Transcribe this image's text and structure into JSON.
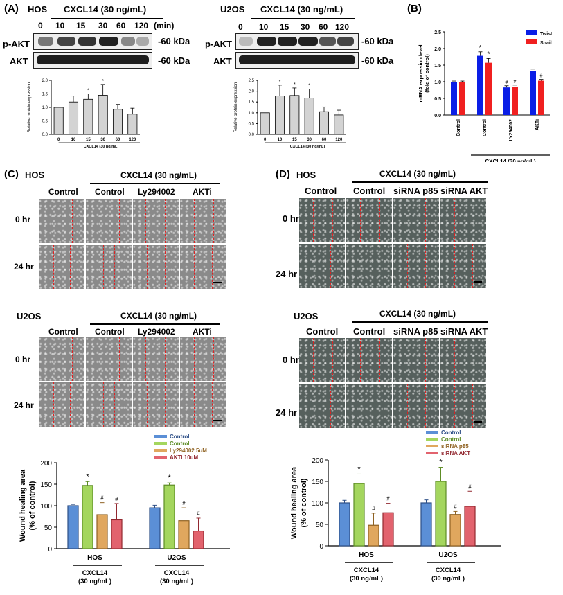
{
  "panelA": {
    "label": "(A)",
    "hos": {
      "cell": "HOS",
      "treatment": "CXCL14 (30 ng/mL)",
      "lanes": [
        "0",
        "10",
        "15",
        "30",
        "60",
        "120"
      ],
      "unit": "(min)",
      "rows": [
        "p-AKT",
        "AKT"
      ],
      "kda": "-60 kDa"
    },
    "u2os": {
      "cell": "U2OS",
      "treatment": "CXCL14 (30 ng/mL)",
      "lanes": [
        "0",
        "10",
        "15",
        "30",
        "60",
        "120"
      ],
      "rows": [
        "p-AKT",
        "AKT"
      ],
      "kda": "-60 kDa"
    }
  },
  "panelB": {
    "label": "(B)",
    "group": "CXCL14 (30 ng/mL)"
  },
  "panelC": {
    "label": "(C)",
    "hos": {
      "cell": "HOS",
      "treatment": "CXCL14 (30 ng/mL)",
      "cols": [
        "Control",
        "Control",
        "Ly294002",
        "AKTi"
      ],
      "rows": [
        "0 hr",
        "24 hr"
      ]
    },
    "u2os": {
      "cell": "U2OS",
      "treatment": "CXCL14 (30 ng/mL)",
      "cols": [
        "Control",
        "Control",
        "Ly294002",
        "AKTi"
      ],
      "rows": [
        "0 hr",
        "24 hr"
      ]
    }
  },
  "panelD": {
    "label": "(D)",
    "hos": {
      "cell": "HOS",
      "treatment": "CXCL14 (30 ng/mL)",
      "cols": [
        "Control",
        "Control",
        "siRNA p85",
        "siRNA AKT"
      ],
      "rows": [
        "0 hr",
        "24 hr"
      ]
    },
    "u2os": {
      "cell": "U2OS",
      "treatment": "CXCL14 (30 ng/mL)",
      "cols": [
        "Control",
        "Control",
        "siRNA p85",
        "siRNA AKT"
      ],
      "rows": [
        "0 hr",
        "24 hr"
      ]
    }
  },
  "colors": {
    "blue": "#5b8fd6",
    "green": "#a4d65e",
    "orange": "#e0a75e",
    "red": "#e2636e",
    "twist": "#0a1ee6",
    "snail": "#f02020",
    "bar_gray": "#d3d3d3"
  },
  "chart_data": [
    {
      "id": "A-HOS",
      "type": "bar",
      "categories": [
        "0",
        "10",
        "15",
        "30",
        "60",
        "120"
      ],
      "values": [
        1.0,
        1.2,
        1.3,
        1.45,
        0.93,
        0.75
      ],
      "errors": [
        0,
        0.22,
        0.2,
        0.4,
        0.18,
        0.22
      ],
      "marks": [
        "",
        "",
        "*",
        "*",
        "",
        ""
      ],
      "ylabel": "Relative protein expression",
      "xlabel": "CXCL14 (30 ng/mL)",
      "ylim": [
        0,
        2.0
      ],
      "yticks": [
        "0.0",
        "0.5",
        "1.0",
        "1.5",
        "2.0"
      ]
    },
    {
      "id": "A-U2OS",
      "type": "bar",
      "categories": [
        "0",
        "10",
        "15",
        "30",
        "60",
        "120"
      ],
      "values": [
        1.0,
        1.78,
        1.8,
        1.68,
        1.05,
        0.9
      ],
      "errors": [
        0,
        0.5,
        0.35,
        0.42,
        0.22,
        0.22
      ],
      "marks": [
        "",
        "*",
        "*",
        "*",
        "",
        ""
      ],
      "ylabel": "Relative protein expression",
      "xlabel": "CXCL14 (30 ng/mL)",
      "ylim": [
        0,
        2.5
      ],
      "yticks": [
        "0.0",
        "0.5",
        "1.0",
        "1.5",
        "2.0",
        "2.5"
      ]
    },
    {
      "id": "B",
      "type": "bar",
      "categories": [
        "Control",
        "Control",
        "LY294002",
        "AKTi"
      ],
      "series": [
        {
          "name": "Twist",
          "values": [
            1.0,
            1.78,
            0.83,
            1.33
          ],
          "errors": [
            0.02,
            0.12,
            0.05,
            0.05
          ],
          "marks": [
            "",
            "*",
            "#",
            ""
          ]
        },
        {
          "name": "Snail",
          "values": [
            1.0,
            1.57,
            0.84,
            1.03
          ],
          "errors": [
            0.02,
            0.13,
            0.06,
            0.04
          ],
          "marks": [
            "",
            "*",
            "#",
            "#"
          ]
        }
      ],
      "ylabel": "mRNA expression level (fold of control)",
      "ylabel_lines": [
        "mRNA expression level",
        "(fold of control)"
      ],
      "ylim": [
        0,
        2.5
      ],
      "yticks": [
        "0.0",
        "0.5",
        "1.0",
        "1.5",
        "2.0",
        "2.5"
      ],
      "legend": "top-right"
    },
    {
      "id": "C",
      "type": "bar",
      "categories": [
        "HOS",
        "U2OS"
      ],
      "category_sub": [
        "CXCL14",
        "(30 ng/mL)"
      ],
      "series": [
        {
          "name": "Control",
          "values": [
            100,
            95
          ],
          "errors": [
            3,
            6
          ],
          "marks": [
            "",
            ""
          ]
        },
        {
          "name": "Control",
          "values": [
            147,
            148
          ],
          "errors": [
            9,
            5
          ],
          "marks": [
            "*",
            "*"
          ]
        },
        {
          "name": "Ly294002 5uM",
          "values": [
            79,
            65
          ],
          "errors": [
            28,
            30
          ],
          "marks": [
            "#",
            "#"
          ]
        },
        {
          "name": "AKTi 10uM",
          "values": [
            67,
            41
          ],
          "errors": [
            38,
            30
          ],
          "marks": [
            "#",
            "#"
          ]
        }
      ],
      "ylabel": "Wound healing area",
      "ylabel2": "(% of control)",
      "ylim": [
        0,
        200
      ],
      "yticks": [
        "0",
        "50",
        "100",
        "150",
        "200"
      ],
      "legend": "top-right"
    },
    {
      "id": "D",
      "type": "bar",
      "categories": [
        "HOS",
        "U2OS"
      ],
      "category_sub": [
        "CXCL14",
        "(30 ng/mL)"
      ],
      "series": [
        {
          "name": "Control",
          "values": [
            100,
            100
          ],
          "errors": [
            6,
            7
          ],
          "marks": [
            "",
            ""
          ]
        },
        {
          "name": "Control",
          "values": [
            145,
            150
          ],
          "errors": [
            22,
            33
          ],
          "marks": [
            "*",
            "*"
          ]
        },
        {
          "name": "siRNA p85",
          "values": [
            48,
            73
          ],
          "errors": [
            28,
            7
          ],
          "marks": [
            "#",
            "#"
          ]
        },
        {
          "name": "siRNA AKT",
          "values": [
            77,
            92
          ],
          "errors": [
            22,
            35
          ],
          "marks": [
            "#",
            "#"
          ]
        }
      ],
      "ylabel": "Wound healing area",
      "ylabel2": "(% of control)",
      "ylim": [
        0,
        200
      ],
      "yticks": [
        "0",
        "50",
        "100",
        "150",
        "200"
      ],
      "legend": "top-right"
    }
  ]
}
